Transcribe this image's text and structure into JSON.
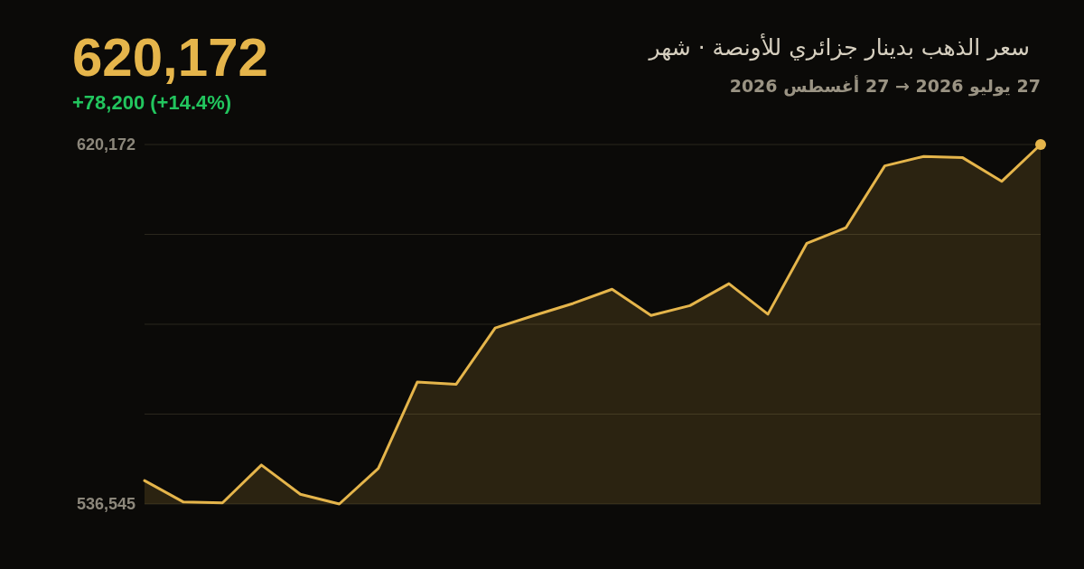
{
  "chart_data": {
    "type": "area",
    "title": "سعر الذهب بدينار جزائري للأونصة · شهر",
    "subtitle": "27 يوليو 2026 → 27 أغسطس 2026",
    "annotations": [
      "620,172",
      "+78,200 (+14.4%)"
    ],
    "categories": [
      null,
      null,
      null,
      null,
      null,
      null,
      null,
      null,
      null,
      null,
      null,
      null,
      null,
      null,
      null,
      null,
      null,
      null,
      null,
      null,
      null,
      null,
      null,
      null
    ],
    "series": [
      {
        "color": "#e5b54b",
        "values": [
          541972,
          537000,
          536800,
          545600,
          538800,
          536545,
          544800,
          564900,
          564400,
          577500,
          580400,
          583200,
          586500,
          580400,
          582700,
          587800,
          580700,
          597200,
          600800,
          615200,
          617400,
          617100,
          611600,
          620172
        ]
      },
      {
        "type": "scatter",
        "marker": "circle",
        "color": "#e5b54b",
        "values": [
          null,
          null,
          null,
          null,
          null,
          null,
          null,
          null,
          null,
          null,
          null,
          null,
          null,
          null,
          null,
          null,
          null,
          null,
          null,
          null,
          null,
          null,
          null,
          620172
        ]
      }
    ],
    "ylim": [
      536545,
      620172
    ],
    "yticks": [
      {
        "value": 536545,
        "label": "536,545"
      },
      {
        "value": 557451.75,
        "label": null
      },
      {
        "value": 578358.5,
        "label": null
      },
      {
        "value": 599265.25,
        "label": null
      },
      {
        "value": 620172,
        "label": "620,172"
      }
    ],
    "grid": "y",
    "tick_labels": "y"
  }
}
